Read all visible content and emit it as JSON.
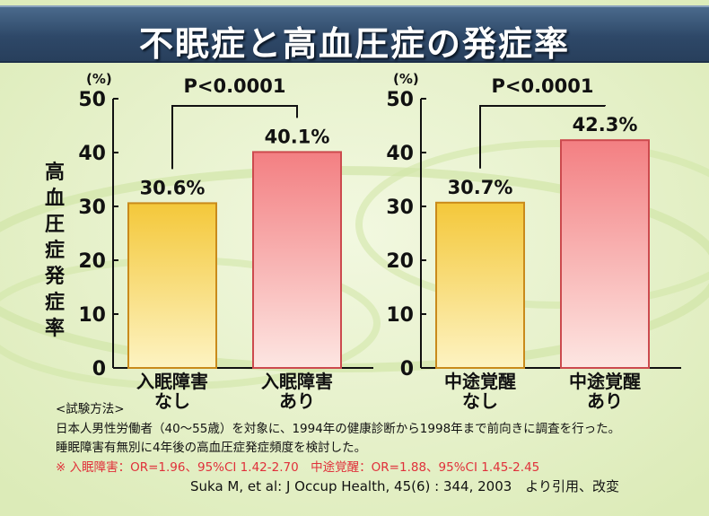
{
  "title": "不眠症と高血圧症の発症率",
  "y_axis_label": "高血圧症発症率",
  "colors": {
    "bar_no": "#f6c73a",
    "bar_yes": "#f48c8c",
    "title_bg": "#2e4868",
    "background": "#e9f3cf",
    "note_red": "#e0303a"
  },
  "chart_data": [
    {
      "type": "bar",
      "unit_label": "(%)",
      "ylim": [
        0,
        50
      ],
      "yticks": [
        "0",
        "10",
        "20",
        "30",
        "40",
        "50"
      ],
      "categories": [
        "入眠障害\nなし",
        "入眠障害\nあり"
      ],
      "values": [
        30.6,
        40.1
      ],
      "value_labels": [
        "30.6%",
        "40.1%"
      ],
      "significance": "P<0.0001"
    },
    {
      "type": "bar",
      "unit_label": "(%)",
      "ylim": [
        0,
        50
      ],
      "yticks": [
        "0",
        "10",
        "20",
        "30",
        "40",
        "50"
      ],
      "categories": [
        "中途覚醒\nなし",
        "中途覚醒\nあり"
      ],
      "values": [
        30.7,
        42.3
      ],
      "value_labels": [
        "30.7%",
        "42.3%"
      ],
      "significance": "P<0.0001"
    }
  ],
  "notes": {
    "method_heading": "<試験方法>",
    "line1": "日本人男性労働者（40～55歳）を対象に、1994年の健康診断から1998年まで前向きに調査を行った。",
    "line2": "睡眠障害有無別に4年後の高血圧症発症頻度を検討した。",
    "or_line": "※ 入眠障害：OR=1.96、95%CI 1.42-2.70　中途覚醒：OR=1.88、95%CI 1.45-2.45",
    "citation": "Suka M, et al: J Occup Health, 45(6) : 344, 2003　より引用、改変"
  }
}
